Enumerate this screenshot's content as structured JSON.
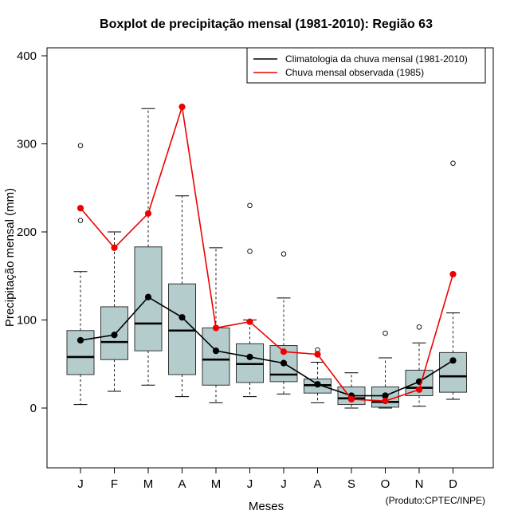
{
  "chart_data": {
    "type": "boxplot",
    "title": "Boxplot de precipitação mensal (1981-2010): Região 63",
    "xlabel": "Meses",
    "ylabel": "Precipitação mensal (mm)",
    "ylim": [
      -68,
      410
    ],
    "yticks": [
      0,
      100,
      200,
      300,
      400
    ],
    "categories": [
      "J",
      "F",
      "M",
      "A",
      "M",
      "J",
      "J",
      "A",
      "S",
      "O",
      "N",
      "D"
    ],
    "boxes": [
      {
        "whisker_low": 4,
        "q1": 38,
        "median": 58,
        "q3": 88,
        "whisker_high": 155,
        "outliers": [
          213,
          298
        ]
      },
      {
        "whisker_low": 19,
        "q1": 55,
        "median": 75,
        "q3": 115,
        "whisker_high": 200,
        "outliers": []
      },
      {
        "whisker_low": 26,
        "q1": 65,
        "median": 96,
        "q3": 183,
        "whisker_high": 340,
        "outliers": []
      },
      {
        "whisker_low": 13,
        "q1": 38,
        "median": 88,
        "q3": 141,
        "whisker_high": 241,
        "outliers": []
      },
      {
        "whisker_low": 6,
        "q1": 26,
        "median": 55,
        "q3": 91,
        "whisker_high": 182,
        "outliers": []
      },
      {
        "whisker_low": 13,
        "q1": 29,
        "median": 50,
        "q3": 73,
        "whisker_high": 100,
        "outliers": [
          178,
          230
        ]
      },
      {
        "whisker_low": 16,
        "q1": 30,
        "median": 38,
        "q3": 71,
        "whisker_high": 125,
        "outliers": [
          175
        ]
      },
      {
        "whisker_low": 6,
        "q1": 17,
        "median": 26,
        "q3": 33,
        "whisker_high": 52,
        "outliers": [
          62,
          66
        ]
      },
      {
        "whisker_low": 0,
        "q1": 4,
        "median": 11,
        "q3": 24,
        "whisker_high": 40,
        "outliers": []
      },
      {
        "whisker_low": 0,
        "q1": 1,
        "median": 7,
        "q3": 24,
        "whisker_high": 57,
        "outliers": [
          85
        ]
      },
      {
        "whisker_low": 2,
        "q1": 14,
        "median": 23,
        "q3": 43,
        "whisker_high": 74,
        "outliers": [
          92
        ]
      },
      {
        "whisker_low": 10,
        "q1": 18,
        "median": 36,
        "q3": 63,
        "whisker_high": 108,
        "outliers": [
          278
        ]
      }
    ],
    "series": [
      {
        "name": "Climatologia da chuva mensal (1981-2010)",
        "color": "#000000",
        "values": [
          77,
          83,
          126,
          103,
          65,
          58,
          51,
          27,
          14,
          14,
          30,
          54
        ]
      },
      {
        "name": "Chuva mensal observada (1985)",
        "color": "#ee0000",
        "values": [
          227,
          182,
          221,
          342,
          91,
          98,
          64,
          61,
          10,
          8,
          21,
          152
        ]
      }
    ],
    "box_color": "#b4cccc",
    "legend_position": "top-right",
    "footnote": "(Produto:CPTEC/INPE)"
  }
}
